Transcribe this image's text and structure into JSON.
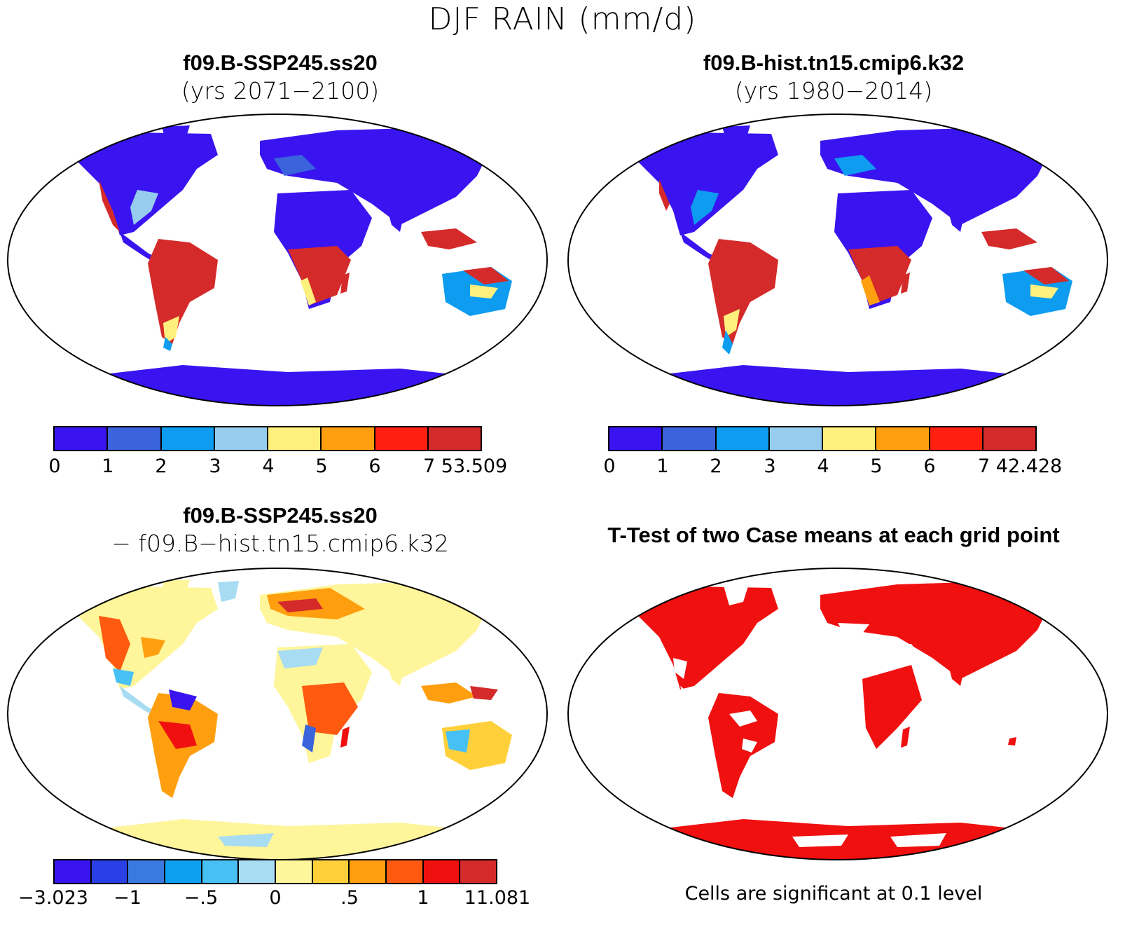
{
  "title": "DJF RAIN (mm/d)",
  "panels": [
    {
      "name": "f09.B-SSP245.ss20",
      "subtitle": "(yrs 2071−2100)",
      "colorbar": {
        "colors": [
          "#3a14f0",
          "#3a63dc",
          "#0d9cf0",
          "#96cdee",
          "#fff07d",
          "#ff9f10",
          "#ff2010",
          "#d42a2a"
        ],
        "tick_labels": [
          "0",
          "1",
          "2",
          "3",
          "4",
          "5",
          "6",
          "7 53.509"
        ]
      }
    },
    {
      "name": "f09.B-hist.tn15.cmip6.k32",
      "subtitle": "(yrs 1980−2014)",
      "colorbar": {
        "colors": [
          "#3a14f0",
          "#3a63dc",
          "#0d9cf0",
          "#96cdee",
          "#fff07d",
          "#ff9f10",
          "#ff2010",
          "#d42a2a"
        ],
        "tick_labels": [
          "0",
          "1",
          "2",
          "3",
          "4",
          "5",
          "6",
          "7 42.428"
        ]
      }
    },
    {
      "name": "f09.B-SSP245.ss20",
      "subtitle": "− f09.B−hist.tn15.cmip6.k32",
      "colorbar": {
        "colors": [
          "#3a14f0",
          "#2a40e6",
          "#3a7ae0",
          "#0da0f0",
          "#47c0f5",
          "#a8dcf2",
          "#fff59a",
          "#ffd03a",
          "#ff9f10",
          "#ff5a10",
          "#f01010",
          "#d42a2a"
        ],
        "tick_labels": [
          "−3.023",
          "−1",
          "−.5",
          "0",
          ".5",
          "1",
          "11.081"
        ]
      }
    },
    {
      "name": "T-Test of two Case means at each grid point",
      "note": "Cells are significant at 0.1 level",
      "significant_color": "#f01010"
    }
  ]
}
